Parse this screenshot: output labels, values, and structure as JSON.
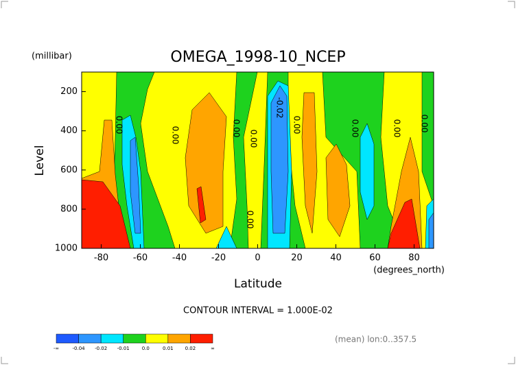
{
  "chart_data": {
    "type": "contour",
    "title": "OMEGA_1998-10_NCEP",
    "y_unit": "(millibar)",
    "y_label": "Level",
    "x_label": "Latitude",
    "x_unit": "(degrees_north)",
    "xlim": [
      -90,
      90
    ],
    "xticks": [
      -80,
      -60,
      -40,
      -20,
      0,
      20,
      40,
      60,
      80
    ],
    "ylim": [
      1000,
      100
    ],
    "yticks": [
      200,
      400,
      600,
      800,
      1000
    ],
    "contour_interval": "CONTOUR INTERVAL = 1.000E-02",
    "footnote": "(mean) lon:0..357.5",
    "contour_labels": [
      "0.00",
      "0.00",
      "0.00",
      "0.00",
      "0.00",
      "-0.02",
      "0.00",
      "0.00",
      "0.00",
      "0.00"
    ],
    "colorbar": {
      "colors": [
        "#1e5aff",
        "#2d96ff",
        "#00e6ff",
        "#1ed21e",
        "#ffff00",
        "#ffa500",
        "#ff1e00"
      ],
      "labels": [
        "-∞",
        "-0.04",
        "-0.02",
        "-0.01",
        "0.0",
        "0.01",
        "0.02",
        "∞"
      ]
    }
  }
}
